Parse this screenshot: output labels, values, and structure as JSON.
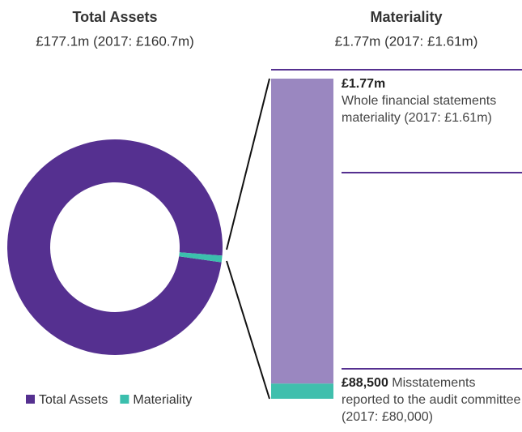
{
  "chart_data": [
    {
      "type": "pie",
      "title": "Total Assets",
      "subtitle": "£177.1m (2017: £160.7m)",
      "categories": [
        "Total Assets",
        "Materiality"
      ],
      "values": [
        177.1,
        1.77
      ],
      "colors": [
        "#553090",
        "#3bbfad"
      ],
      "donut": true
    },
    {
      "type": "bar",
      "title": "Materiality",
      "subtitle": "£1.77m (2017: £1.61m)",
      "values": [
        1770000,
        88500
      ],
      "value_labels": [
        "£1.77m",
        "£88,500"
      ],
      "descriptions": [
        "Whole financial statements materiality (2017: £1.61m)",
        "Misstatements reported to the audit committee (2017: £80,000)"
      ],
      "colors": [
        "#9a87c0",
        "#40bfad"
      ]
    }
  ]
}
